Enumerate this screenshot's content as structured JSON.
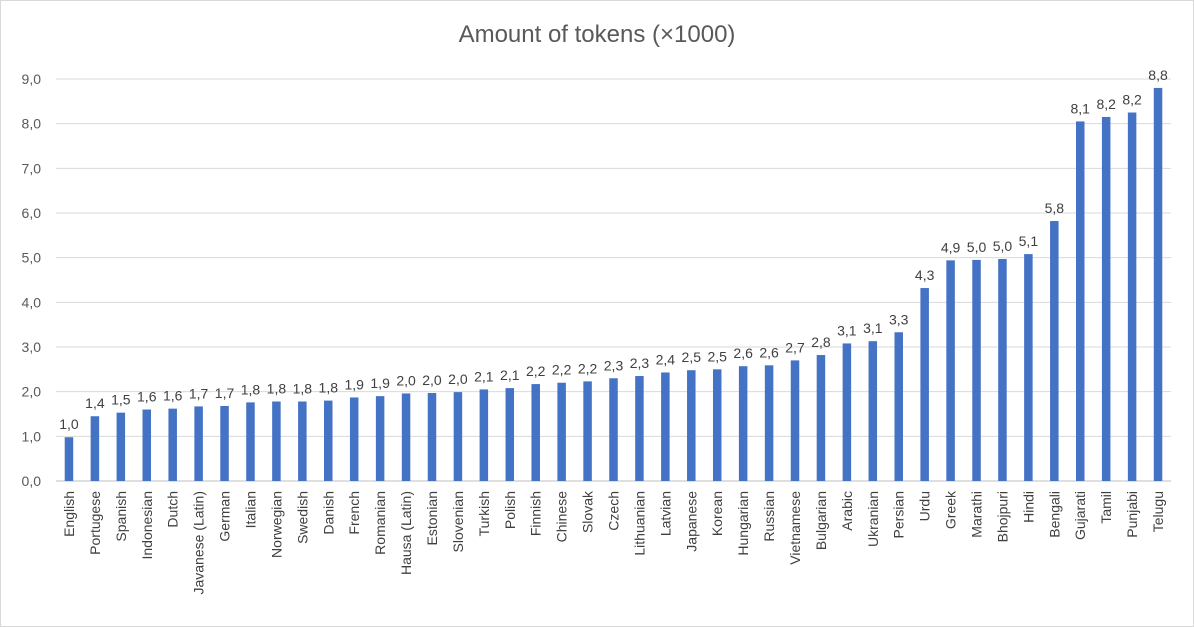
{
  "chart_data": {
    "type": "bar",
    "title": "Amount of tokens (×1000)",
    "xlabel": "",
    "ylabel": "",
    "ylim": [
      0,
      9
    ],
    "yticks": [
      "0,0",
      "1,0",
      "2,0",
      "3,0",
      "4,0",
      "5,0",
      "6,0",
      "7,0",
      "8,0",
      "9,0"
    ],
    "grid": true,
    "bar_color": "#4472c4",
    "categories": [
      "English",
      "Portugese",
      "Spanish",
      "Indonesian",
      "Dutch",
      "Javanese (Latin)",
      "German",
      "Italian",
      "Norwegian",
      "Swedish",
      "Danish",
      "French",
      "Romanian",
      "Hausa (Latin)",
      "Estonian",
      "Slovenian",
      "Turkish",
      "Polish",
      "Finnish",
      "Chinese",
      "Slovak",
      "Czech",
      "Lithuanian",
      "Latvian",
      "Japanese",
      "Korean",
      "Hungarian",
      "Russian",
      "Vietnamese",
      "Bulgarian",
      "Arabic",
      "Ukranian",
      "Persian",
      "Urdu",
      "Greek",
      "Marathi",
      "Bhojpuri",
      "Hindi",
      "Bengali",
      "Gujarati",
      "Tamil",
      "Punjabi",
      "Telugu"
    ],
    "values": [
      0.98,
      1.45,
      1.53,
      1.6,
      1.62,
      1.67,
      1.68,
      1.76,
      1.78,
      1.78,
      1.8,
      1.87,
      1.9,
      1.96,
      1.97,
      1.99,
      2.05,
      2.08,
      2.17,
      2.2,
      2.23,
      2.3,
      2.35,
      2.43,
      2.48,
      2.5,
      2.57,
      2.59,
      2.7,
      2.82,
      3.08,
      3.13,
      3.33,
      4.32,
      4.94,
      4.95,
      4.97,
      5.08,
      5.82,
      8.05,
      8.15,
      8.25,
      8.8
    ],
    "labels": [
      "1,0",
      "1,4",
      "1,5",
      "1,6",
      "1,6",
      "1,7",
      "1,7",
      "1,8",
      "1,8",
      "1,8",
      "1,8",
      "1,9",
      "1,9",
      "2,0",
      "2,0",
      "2,0",
      "2,1",
      "2,1",
      "2,2",
      "2,2",
      "2,2",
      "2,3",
      "2,3",
      "2,4",
      "2,5",
      "2,5",
      "2,6",
      "2,6",
      "2,7",
      "2,8",
      "3,1",
      "3,1",
      "3,3",
      "4,3",
      "4,9",
      "5,0",
      "5,0",
      "5,1",
      "5,8",
      "8,1",
      "8,2",
      "8,2",
      "8,8"
    ]
  }
}
